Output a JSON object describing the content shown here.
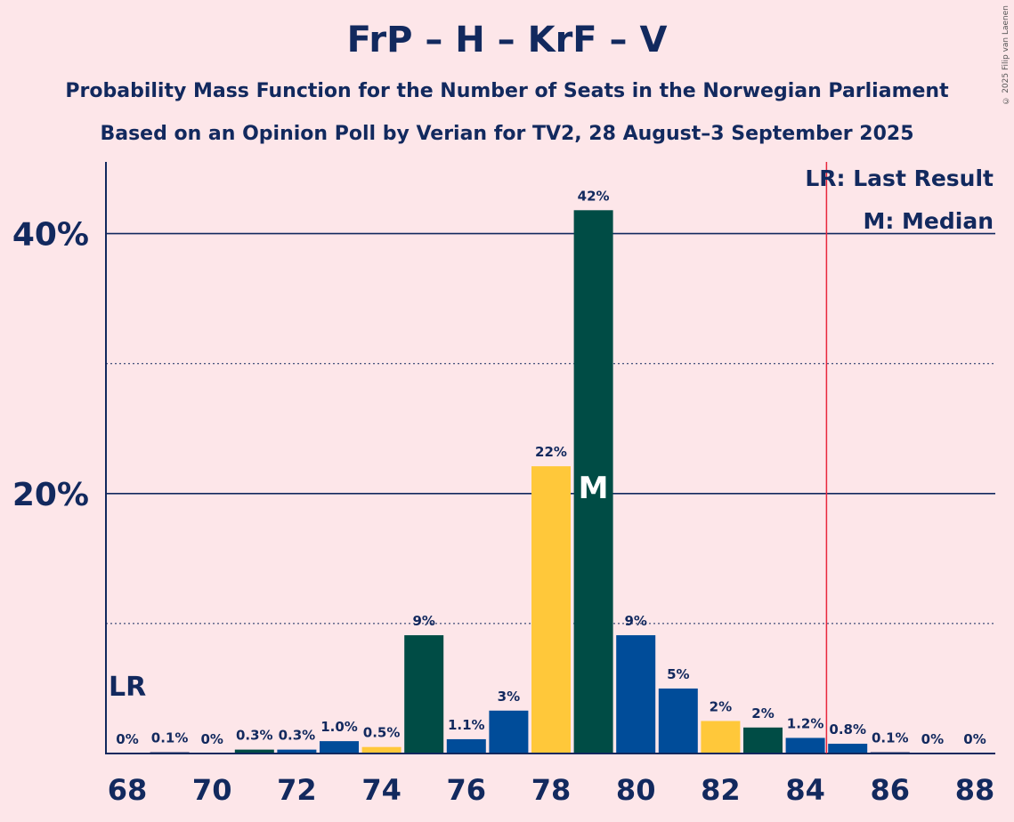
{
  "title": "FrP – H – KrF – V",
  "subtitle1": "Probability Mass Function for the Number of Seats in the Norwegian Parliament",
  "subtitle2": "Based on an Opinion Poll by Verian for TV2, 28 August–3 September 2025",
  "credit": "© 2025 Filip van Laenen",
  "legend": {
    "lr": "LR: Last Result",
    "median": "M: Median"
  },
  "markers": {
    "lr_label": "LR",
    "median_label": "M"
  },
  "chart_data": {
    "type": "bar",
    "x": [
      68,
      69,
      70,
      71,
      72,
      73,
      74,
      75,
      76,
      77,
      78,
      79,
      80,
      81,
      82,
      83,
      84,
      85,
      86,
      87,
      88
    ],
    "values": [
      0,
      0.1,
      0,
      0.3,
      0.3,
      1.0,
      0.5,
      9,
      1.1,
      3,
      22,
      42,
      9,
      5,
      2,
      2,
      1.2,
      0.8,
      0.1,
      0,
      0
    ],
    "labels": [
      "0%",
      "0.1%",
      "0%",
      "0.3%",
      "0.3%",
      "1.0%",
      "0.5%",
      "9%",
      "1.1%",
      "3%",
      "22%",
      "42%",
      "9%",
      "5%",
      "2%",
      "2%",
      "1.2%",
      "0.8%",
      "0.1%",
      "0%",
      "0%"
    ],
    "plot_values": [
      0,
      0.1,
      0,
      0.3,
      0.3,
      0.95,
      0.5,
      9.1,
      1.1,
      3.3,
      22.1,
      41.8,
      9.1,
      5.0,
      2.5,
      2.0,
      1.2,
      0.75,
      0.1,
      0,
      0
    ],
    "colors": [
      "#12295e",
      "#12295e",
      "#12295e",
      "#004c45",
      "#004c99",
      "#004c99",
      "#ffc83a",
      "#004c45",
      "#004c99",
      "#004c99",
      "#ffc83a",
      "#004c45",
      "#004c99",
      "#004c99",
      "#ffc83a",
      "#004c45",
      "#004c99",
      "#004c99",
      "#12295e",
      "#12295e",
      "#12295e"
    ],
    "xticks": [
      68,
      70,
      72,
      74,
      76,
      78,
      80,
      82,
      84,
      86,
      88
    ],
    "yticks": [
      {
        "value": 20,
        "label": "20%"
      },
      {
        "value": 40,
        "label": "40%"
      }
    ],
    "ylim": [
      0,
      45
    ],
    "last_result": 84.5,
    "median": 79,
    "lr_line_color": "#e8263c"
  }
}
